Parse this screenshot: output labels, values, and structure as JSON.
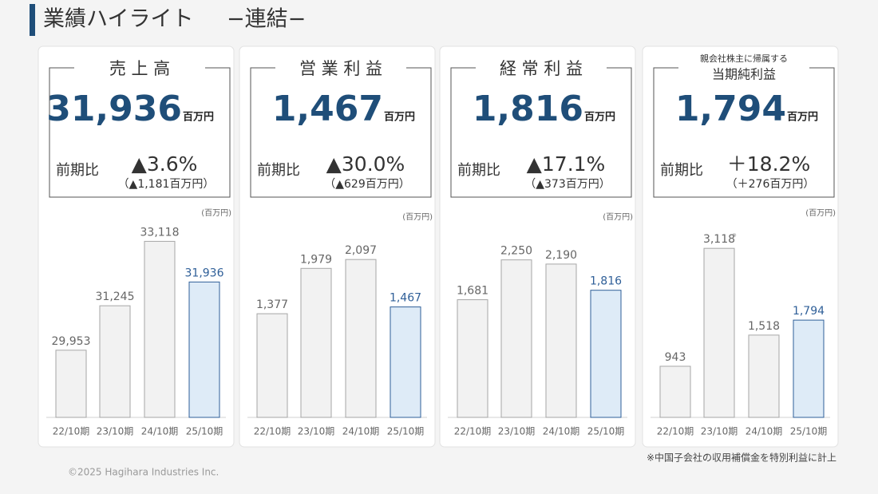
{
  "header": {
    "title": "業績ハイライト",
    "subtitle": "−連結−"
  },
  "panels": [
    {
      "label": "売 上 高",
      "value": "31,936",
      "unit": "百万円",
      "compare_label": "前期比",
      "change": "▲3.6%",
      "change_detail": "（▲1,181百万円）"
    },
    {
      "label": "営 業 利 益",
      "value": "1,467",
      "unit": "百万円",
      "compare_label": "前期比",
      "change": "▲30.0%",
      "change_detail": "（▲629百万円）"
    },
    {
      "label": "経 常 利 益",
      "value": "1,816",
      "unit": "百万円",
      "compare_label": "前期比",
      "change": "▲17.1%",
      "change_detail": "（▲373百万円）"
    },
    {
      "label_note": "親会社株主に帰属する",
      "label": "当期純利益",
      "value": "1,794",
      "unit": "百万円",
      "compare_label": "前期比",
      "change": "＋18.2%",
      "change_detail": "（＋276百万円）"
    }
  ],
  "chart_data": [
    {
      "type": "bar",
      "unit_label": "(百万円)",
      "categories": [
        "22/10期",
        "23/10期",
        "24/10期",
        "25/10期"
      ],
      "values": [
        29953,
        31245,
        33118,
        31936
      ],
      "value_labels": [
        "29,953",
        "31,245",
        "33,118",
        "31,936"
      ],
      "colors": [
        "#f2f2f2",
        "#f2f2f2",
        "#f2f2f2",
        "#deebf7"
      ],
      "edge_colors": [
        "#a6a6a6",
        "#a6a6a6",
        "#a6a6a6",
        "#2f5f98"
      ],
      "ylim": [
        28000,
        33800
      ]
    },
    {
      "type": "bar",
      "unit_label": "(百万円)",
      "categories": [
        "22/10期",
        "23/10期",
        "24/10期",
        "25/10期"
      ],
      "values": [
        1377,
        1979,
        2097,
        1467
      ],
      "value_labels": [
        "1,377",
        "1,979",
        "2,097",
        "1,467"
      ],
      "colors": [
        "#f2f2f2",
        "#f2f2f2",
        "#f2f2f2",
        "#deebf7"
      ],
      "edge_colors": [
        "#a6a6a6",
        "#a6a6a6",
        "#a6a6a6",
        "#2f5f98"
      ],
      "ylim": [
        0,
        2650
      ]
    },
    {
      "type": "bar",
      "unit_label": "(百万円)",
      "categories": [
        "22/10期",
        "23/10期",
        "24/10期",
        "25/10期"
      ],
      "values": [
        1681,
        2250,
        2190,
        1816
      ],
      "value_labels": [
        "1,681",
        "2,250",
        "2,190",
        "1,816"
      ],
      "colors": [
        "#f2f2f2",
        "#f2f2f2",
        "#f2f2f2",
        "#deebf7"
      ],
      "edge_colors": [
        "#a6a6a6",
        "#a6a6a6",
        "#a6a6a6",
        "#2f5f98"
      ],
      "ylim": [
        0,
        2850
      ]
    },
    {
      "type": "bar",
      "unit_label": "(百万円)",
      "categories": [
        "22/10期",
        "23/10期",
        "24/10期",
        "25/10期"
      ],
      "values": [
        943,
        3118,
        1518,
        1794
      ],
      "value_labels": [
        "943",
        "3,118",
        "1,518",
        "1,794"
      ],
      "colors": [
        "#f2f2f2",
        "#f2f2f2",
        "#f2f2f2",
        "#deebf7"
      ],
      "edge_colors": [
        "#a6a6a6",
        "#a6a6a6",
        "#a6a6a6",
        "#2f5f98"
      ],
      "annotation": "※",
      "ylim": [
        0,
        3680
      ]
    }
  ],
  "footer": {
    "copyright": "©2025 Hagihara Industries Inc.",
    "note": "※中国子会社の収用補償金を特別利益に計上"
  }
}
